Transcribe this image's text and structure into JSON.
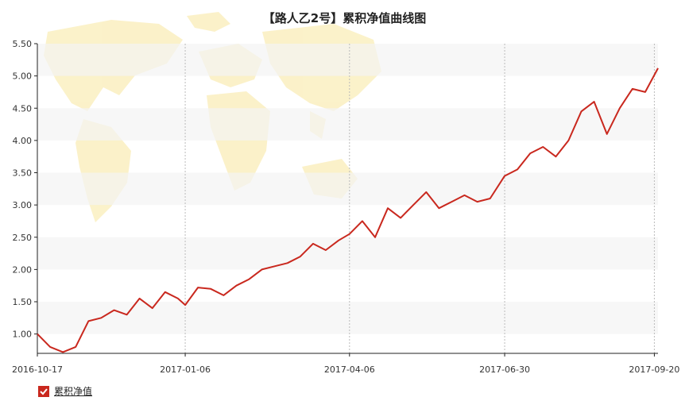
{
  "chart_data": {
    "type": "line",
    "title": "【路人乙2号】累积净值曲线图",
    "ylim": [
      0.7,
      5.5
    ],
    "yticks": [
      "5.50",
      "5.00",
      "4.50",
      "4.00",
      "3.50",
      "3.00",
      "2.50",
      "2.00",
      "1.50",
      "1.00"
    ],
    "ytick_values": [
      5.5,
      5.0,
      4.5,
      4.0,
      3.5,
      3.0,
      2.5,
      2.0,
      1.5,
      1.0
    ],
    "xticks": [
      "2016-10-17",
      "2017-01-06",
      "2017-04-06",
      "2017-06-30",
      "2017-09-20"
    ],
    "xtick_values": [
      "2016-10-17",
      "2017-01-06",
      "2017-04-06",
      "2017-06-30",
      "2017-09-20"
    ],
    "x_range": [
      "2016-10-17",
      "2017-09-22"
    ],
    "grid": "vertical dashed lines at x ticks, alternating horizontal bands",
    "legend_position": "bottom-left",
    "series": [
      {
        "name": "累积净值",
        "color": "#c9281e",
        "x": [
          "2016-10-17",
          "2016-10-24",
          "2016-10-31",
          "2016-11-07",
          "2016-11-14",
          "2016-11-21",
          "2016-11-28",
          "2016-12-05",
          "2016-12-12",
          "2016-12-19",
          "2016-12-26",
          "2017-01-02",
          "2017-01-06",
          "2017-01-13",
          "2017-01-20",
          "2017-01-27",
          "2017-02-03",
          "2017-02-10",
          "2017-02-17",
          "2017-02-24",
          "2017-03-03",
          "2017-03-10",
          "2017-03-17",
          "2017-03-24",
          "2017-03-31",
          "2017-04-06",
          "2017-04-13",
          "2017-04-20",
          "2017-04-27",
          "2017-05-04",
          "2017-05-11",
          "2017-05-18",
          "2017-05-25",
          "2017-06-01",
          "2017-06-08",
          "2017-06-15",
          "2017-06-22",
          "2017-06-30",
          "2017-07-07",
          "2017-07-14",
          "2017-07-21",
          "2017-07-28",
          "2017-08-04",
          "2017-08-11",
          "2017-08-18",
          "2017-08-25",
          "2017-09-01",
          "2017-09-08",
          "2017-09-15",
          "2017-09-22"
        ],
        "values": [
          1.0,
          0.8,
          0.72,
          0.8,
          1.2,
          1.25,
          1.37,
          1.3,
          1.55,
          1.4,
          1.65,
          1.55,
          1.45,
          1.72,
          1.7,
          1.6,
          1.75,
          1.85,
          2.0,
          2.05,
          2.1,
          2.2,
          2.4,
          2.3,
          2.45,
          2.55,
          2.75,
          2.5,
          2.95,
          2.8,
          3.0,
          3.2,
          2.95,
          3.05,
          3.15,
          3.05,
          3.1,
          3.45,
          3.55,
          3.8,
          3.9,
          3.75,
          4.0,
          4.45,
          4.6,
          4.1,
          4.5,
          4.8,
          4.75,
          5.12
        ]
      }
    ]
  }
}
